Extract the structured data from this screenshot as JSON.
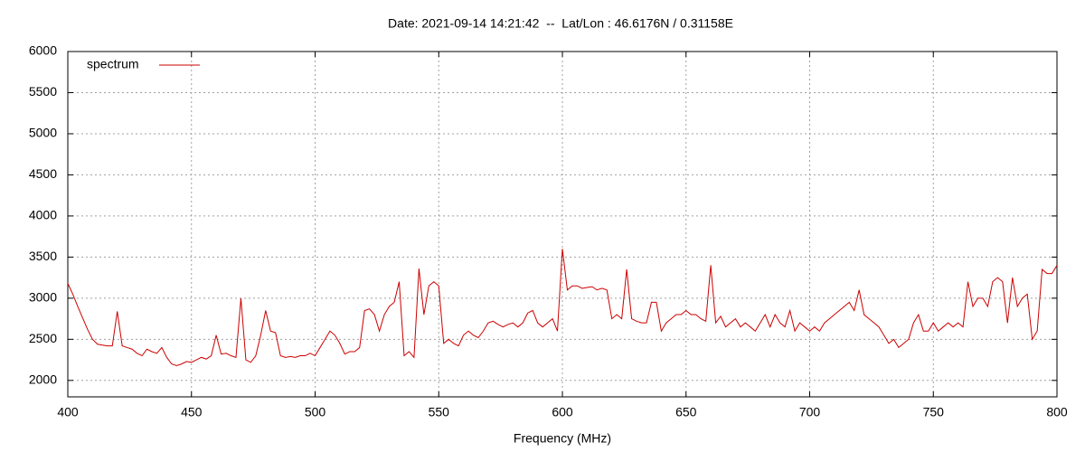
{
  "chart_data": {
    "type": "line",
    "title": "Date: 2021-09-14 14:21:42  --  Lat/Lon : 46.6176N / 0.31158E",
    "x_label": "Frequency (MHz)",
    "x": [
      400,
      402,
      404,
      406,
      408,
      410,
      412,
      414,
      416,
      418,
      420,
      422,
      424,
      426,
      428,
      430,
      432,
      434,
      436,
      438,
      440,
      442,
      444,
      446,
      448,
      450,
      452,
      454,
      456,
      458,
      460,
      462,
      464,
      466,
      468,
      470,
      472,
      474,
      476,
      478,
      480,
      482,
      484,
      486,
      488,
      490,
      492,
      494,
      496,
      498,
      500,
      502,
      504,
      506,
      508,
      510,
      512,
      514,
      516,
      518,
      520,
      522,
      524,
      526,
      528,
      530,
      532,
      534,
      536,
      538,
      540,
      542,
      544,
      546,
      548,
      550,
      552,
      554,
      556,
      558,
      560,
      562,
      564,
      566,
      568,
      570,
      572,
      574,
      576,
      578,
      580,
      582,
      584,
      586,
      588,
      590,
      592,
      594,
      596,
      598,
      600,
      602,
      604,
      606,
      608,
      610,
      612,
      614,
      616,
      618,
      620,
      622,
      624,
      626,
      628,
      630,
      632,
      634,
      636,
      638,
      640,
      642,
      644,
      646,
      648,
      650,
      652,
      654,
      656,
      658,
      660,
      662,
      664,
      666,
      668,
      670,
      672,
      674,
      676,
      678,
      680,
      682,
      684,
      686,
      688,
      690,
      692,
      694,
      696,
      698,
      700,
      702,
      704,
      706,
      708,
      710,
      712,
      714,
      716,
      718,
      720,
      722,
      724,
      726,
      728,
      730,
      732,
      734,
      736,
      738,
      740,
      742,
      744,
      746,
      748,
      750,
      752,
      754,
      756,
      758,
      760,
      762,
      764,
      766,
      768,
      770,
      772,
      774,
      776,
      778,
      780,
      782,
      784,
      786,
      788,
      790,
      792,
      794,
      796,
      798,
      800
    ],
    "series": [
      {
        "name": "spectrum",
        "color": "#cc0000",
        "values": [
          3180,
          3050,
          2900,
          2760,
          2620,
          2500,
          2440,
          2430,
          2420,
          2420,
          2840,
          2420,
          2400,
          2380,
          2330,
          2300,
          2380,
          2350,
          2330,
          2400,
          2280,
          2200,
          2180,
          2200,
          2230,
          2220,
          2250,
          2280,
          2260,
          2300,
          2550,
          2320,
          2330,
          2300,
          2280,
          3000,
          2250,
          2220,
          2300,
          2550,
          2850,
          2600,
          2580,
          2300,
          2280,
          2290,
          2280,
          2300,
          2300,
          2330,
          2300,
          2400,
          2500,
          2600,
          2550,
          2450,
          2320,
          2350,
          2350,
          2400,
          2850,
          2870,
          2800,
          2600,
          2800,
          2900,
          2950,
          3200,
          2300,
          2350,
          2280,
          3360,
          2800,
          3150,
          3200,
          3150,
          2450,
          2500,
          2450,
          2420,
          2550,
          2600,
          2550,
          2520,
          2600,
          2700,
          2720,
          2680,
          2650,
          2680,
          2700,
          2650,
          2700,
          2820,
          2850,
          2700,
          2650,
          2700,
          2750,
          2600,
          3600,
          3100,
          3150,
          3150,
          3120,
          3130,
          3140,
          3100,
          3120,
          3100,
          2750,
          2800,
          2750,
          3350,
          2750,
          2720,
          2700,
          2700,
          2950,
          2950,
          2600,
          2700,
          2750,
          2800,
          2800,
          2850,
          2800,
          2800,
          2750,
          2720,
          3400,
          2700,
          2780,
          2650,
          2700,
          2750,
          2650,
          2700,
          2650,
          2600,
          2700,
          2800,
          2650,
          2800,
          2700,
          2650,
          2850,
          2600,
          2700,
          2650,
          2600,
          2650,
          2600,
          2700,
          2750,
          2800,
          2850,
          2900,
          2950,
          2850,
          3100,
          2800,
          2750,
          2700,
          2650,
          2550,
          2450,
          2500,
          2400,
          2450,
          2500,
          2700,
          2800,
          2600,
          2600,
          2700,
          2600,
          2650,
          2700,
          2650,
          2700,
          2650,
          3200,
          2900,
          3000,
          3000,
          2900,
          3200,
          3250,
          3200,
          2700,
          3250,
          2900,
          3000,
          3050,
          2500,
          2600,
          3350,
          3300,
          3300,
          3400
        ]
      }
    ],
    "xlim": [
      400,
      800
    ],
    "xticks": [
      400,
      450,
      500,
      550,
      600,
      650,
      700,
      750,
      800
    ],
    "ylim": [
      1800,
      6000
    ],
    "yticks": [
      2000,
      2500,
      3000,
      3500,
      4000,
      4500,
      5000,
      5500,
      6000
    ],
    "grid": true,
    "legend": "top-left"
  }
}
